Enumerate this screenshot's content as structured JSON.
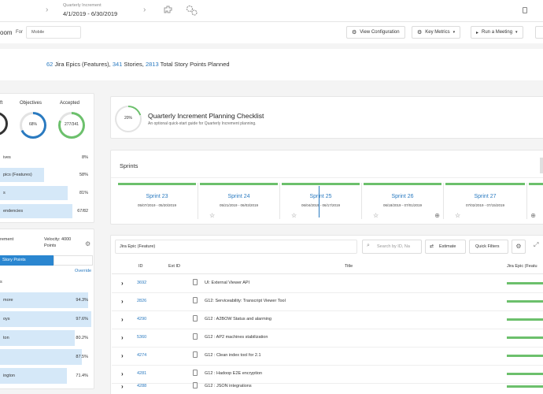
{
  "topbar": {
    "qi_label": "Quarterly Increment",
    "qi_range": "4/1/2019 - 6/30/2019"
  },
  "toolbar": {
    "room_fragment": "oom",
    "for_label": "For",
    "for_value": "Mobile",
    "view_config": "View Configuration",
    "key_metrics": "Key Metrics",
    "run_meeting": "Run a Meeting"
  },
  "summary": {
    "epics_count": "62",
    "epics_text": "Jira Epics (Features),",
    "stories_count": "341",
    "stories_text": "Stories,",
    "points_count": "2813",
    "points_text": "Total Story Points Planned"
  },
  "metrics": {
    "headers": [
      "ft",
      "Objectives",
      "Accepted"
    ],
    "donut2_value": "68%",
    "donut3_value": "277/341",
    "rows": [
      {
        "label": "ives",
        "value": "8%"
      },
      {
        "label": "pics (Features)",
        "value": "58%"
      },
      {
        "label": "s",
        "value": "81%"
      },
      {
        "label": "endencies",
        "value": "67/82"
      }
    ]
  },
  "velocity": {
    "label": "rement",
    "velocity_text": "Velocity: 4000 Points",
    "story_points_tab": "Story Points",
    "override": "Override",
    "section_label": "s",
    "members": [
      {
        "name": "more",
        "pct": "94.3%",
        "fill": 0.94
      },
      {
        "name": "oys",
        "pct": "97.6%",
        "fill": 0.98
      },
      {
        "name": "ton",
        "pct": "80.2%",
        "fill": 0.8
      },
      {
        "name": "",
        "pct": "87.5%",
        "fill": 0.875
      },
      {
        "name": "ington",
        "pct": "71.4%",
        "fill": 0.71
      }
    ]
  },
  "checklist": {
    "progress": "20%",
    "progress_fraction": 0.2,
    "title": "Quarterly Increment Planning Checklist",
    "subtitle": "An optional quick-start guide for Quarterly Increment planning."
  },
  "sprints": {
    "label": "Sprints",
    "items": [
      {
        "name": "Sprint 23",
        "dates": "05/07/2019 - 05/20/2019"
      },
      {
        "name": "Sprint 24",
        "dates": "05/21/2019 - 06/03/2019"
      },
      {
        "name": "Sprint 25",
        "dates": "06/04/2019 - 06/17/2019"
      },
      {
        "name": "Sprint 26",
        "dates": "06/18/2019 - 07/01/2019"
      },
      {
        "name": "Sprint 27",
        "dates": "07/02/2019 - 07/15/2019"
      }
    ]
  },
  "table": {
    "select_value": "Jira Epic (Feature)",
    "search_placeholder": "Search by ID, Na",
    "estimate": "Estimate",
    "quick_filters": "Quick Filters",
    "col_id": "ID",
    "col_ext": "Ext ID",
    "col_title": "Title",
    "col_jira": "Jira Epic (Featu",
    "rows": [
      {
        "id": "3692",
        "title": "UI: External Viewer API"
      },
      {
        "id": "2826",
        "title": "G12: Serviceability: Transcript Viewer Tool"
      },
      {
        "id": "4290",
        "title": "G12 : A2BOW Status and alarming"
      },
      {
        "id": "5360",
        "title": "G12 : AP2 machines stabilization"
      },
      {
        "id": "4274",
        "title": "G12 : Clean index tool for 2.1"
      },
      {
        "id": "4281",
        "title": "G12 : Hadoop E2E encryption"
      },
      {
        "id": "4288",
        "title": "G12 : JSON integrations"
      }
    ]
  },
  "colors": {
    "accent_blue": "#2a7ac0",
    "green": "#6cc06c",
    "light_blue": "#d5e8f8"
  }
}
